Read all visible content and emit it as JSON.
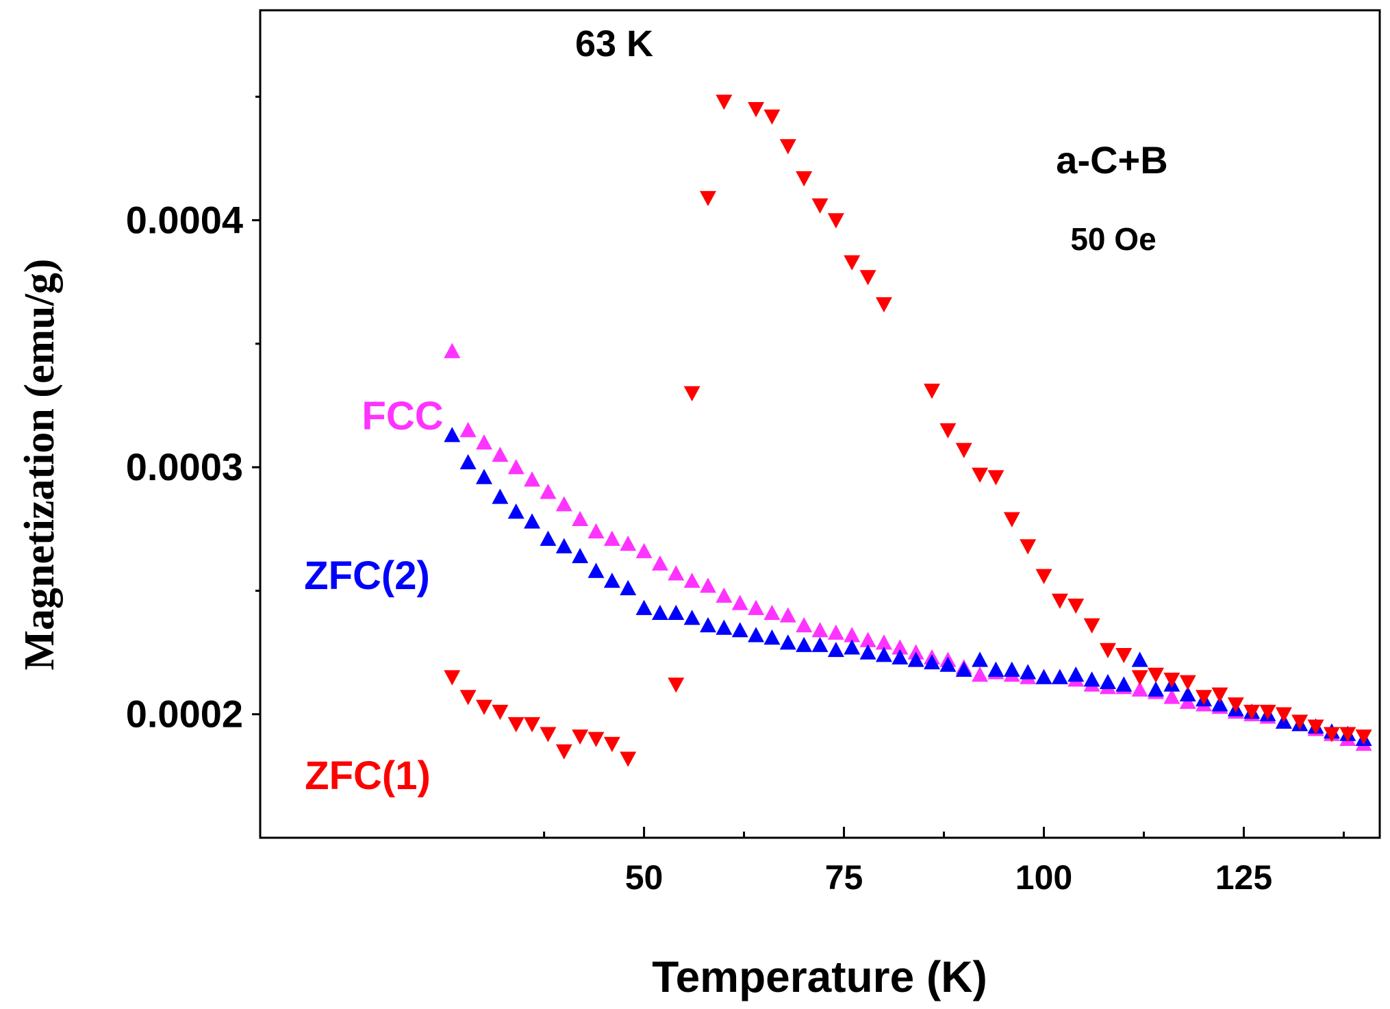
{
  "chart_data": {
    "type": "scatter",
    "title": "",
    "xlabel": "Temperature (K)",
    "ylabel": "Magnetization (emu/g)",
    "xlim": [
      2,
      142
    ],
    "ylim": [
      0.00015,
      0.000485
    ],
    "xticks": [
      50,
      75,
      100,
      125
    ],
    "xtick_labels": [
      "50",
      "75",
      "100",
      "125"
    ],
    "yticks": [
      0.0002,
      0.0003,
      0.0004
    ],
    "ytick_labels": [
      "0.0002",
      "0.0003",
      "0.0004"
    ],
    "annotations": {
      "peak": "63 K",
      "sample": "a-C+B",
      "field": "50 Oe"
    },
    "series": [
      {
        "name": "FCC",
        "marker": "triangle-up",
        "color": "#ff33ff",
        "x": [
          26,
          28,
          30,
          32,
          34,
          36,
          38,
          40,
          42,
          44,
          46,
          48,
          50,
          52,
          54,
          56,
          58,
          60,
          62,
          64,
          66,
          68,
          70,
          72,
          74,
          76,
          78,
          80,
          82,
          84,
          86,
          88,
          90,
          92,
          94,
          96,
          98,
          100,
          102,
          104,
          106,
          108,
          110,
          112,
          114,
          116,
          118,
          120,
          122,
          124,
          126,
          128,
          130,
          132,
          134,
          136,
          138,
          140
        ],
        "values": [
          0.000347,
          0.000315,
          0.00031,
          0.000305,
          0.0003,
          0.000295,
          0.00029,
          0.000285,
          0.000279,
          0.000274,
          0.000271,
          0.000269,
          0.000266,
          0.000261,
          0.000257,
          0.000254,
          0.000252,
          0.000248,
          0.000245,
          0.000243,
          0.000241,
          0.00024,
          0.000236,
          0.000234,
          0.000233,
          0.000232,
          0.00023,
          0.000229,
          0.000227,
          0.000225,
          0.000223,
          0.000222,
          0.000219,
          0.000216,
          0.000217,
          0.000216,
          0.000215,
          0.000215,
          0.000215,
          0.000214,
          0.000212,
          0.000211,
          0.000211,
          0.00021,
          0.000209,
          0.000207,
          0.000205,
          0.000204,
          0.000203,
          0.000201,
          0.0002,
          0.000199,
          0.000197,
          0.000196,
          0.000194,
          0.000192,
          0.00019,
          0.000188
        ]
      },
      {
        "name": "ZFC(2)",
        "marker": "triangle-up",
        "color": "#0000ff",
        "x": [
          26,
          28,
          30,
          32,
          34,
          36,
          38,
          40,
          42,
          44,
          46,
          48,
          50,
          52,
          54,
          56,
          58,
          60,
          62,
          64,
          66,
          68,
          70,
          72,
          74,
          76,
          78,
          80,
          82,
          84,
          86,
          88,
          90,
          92,
          94,
          96,
          98,
          100,
          102,
          104,
          106,
          108,
          110,
          112,
          114,
          116,
          118,
          120,
          122,
          124,
          126,
          128,
          130,
          132,
          134,
          136,
          138,
          140
        ],
        "values": [
          0.000313,
          0.000302,
          0.000296,
          0.000288,
          0.000282,
          0.000278,
          0.000271,
          0.000268,
          0.000264,
          0.000258,
          0.000254,
          0.000251,
          0.000243,
          0.000241,
          0.000241,
          0.000239,
          0.000236,
          0.000235,
          0.000234,
          0.000232,
          0.000231,
          0.000229,
          0.000228,
          0.000228,
          0.000226,
          0.000227,
          0.000225,
          0.000224,
          0.000223,
          0.000222,
          0.000221,
          0.00022,
          0.000218,
          0.000222,
          0.000218,
          0.000218,
          0.000217,
          0.000215,
          0.000215,
          0.000216,
          0.000214,
          0.000213,
          0.000212,
          0.000222,
          0.00021,
          0.000212,
          0.000208,
          0.000206,
          0.000204,
          0.000202,
          0.000201,
          0.0002,
          0.000197,
          0.000196,
          0.000195,
          0.000193,
          0.000192,
          0.00019
        ]
      },
      {
        "name": "ZFC(1)",
        "marker": "triangle-down",
        "color": "#ff0000",
        "x": [
          26,
          28,
          30,
          32,
          34,
          36,
          38,
          40,
          42,
          44,
          46,
          48,
          50,
          52,
          54,
          56,
          58,
          60,
          62,
          64,
          66,
          68,
          70,
          72,
          74,
          76,
          78,
          80,
          82,
          84,
          86,
          88,
          90,
          92,
          94,
          96,
          98,
          100,
          102,
          104,
          106,
          108,
          110,
          112,
          114,
          116,
          118,
          120,
          122,
          124,
          126,
          128,
          130,
          132,
          134,
          136,
          138,
          140
        ],
        "values": [
          0.000215,
          0.000207,
          0.000203,
          0.000201,
          0.000196,
          0.000196,
          0.000192,
          0.000185,
          0.000191,
          0.00019,
          0.000188,
          0.000182,
          null,
          null,
          0.000212,
          0.00033,
          0.000409,
          0.000448,
          null,
          0.000445,
          0.000442,
          0.00043,
          0.000417,
          0.000406,
          0.0004,
          0.000383,
          0.000377,
          0.000366,
          null,
          null,
          0.000331,
          0.000315,
          0.000307,
          0.000297,
          0.000296,
          0.000279,
          0.000268,
          0.000256,
          0.000246,
          0.000244,
          0.000236,
          0.000226,
          0.000224,
          0.000215,
          0.000216,
          0.000214,
          0.000213,
          0.000207,
          0.000208,
          0.000204,
          0.000201,
          0.000201,
          0.0002,
          0.000197,
          0.000195,
          0.000192,
          0.000192,
          0.000191
        ]
      }
    ]
  },
  "labels": {
    "fcc": "FCC",
    "zfc2": "ZFC(2)",
    "zfc1": "ZFC(1)"
  }
}
